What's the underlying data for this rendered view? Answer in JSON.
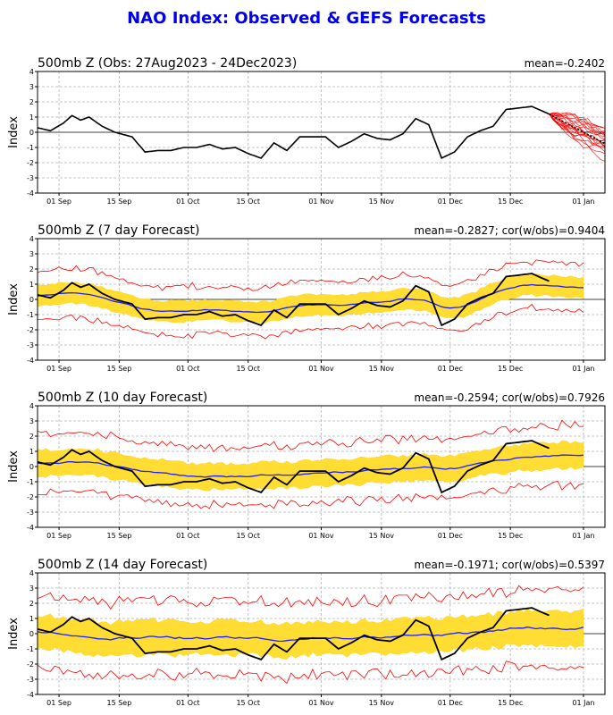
{
  "title": "NAO Index: Observed & GEFS Forecasts",
  "colors": {
    "title": "#0000ee",
    "observed": "#000000",
    "ensemble_mean": "#1c1cff",
    "spread": "#ffdd33",
    "spread_edge": "#ffd21a",
    "ensemble_members": "#ff0000",
    "grid": "#b3b3b3"
  },
  "chart_data": [
    {
      "type": "line",
      "title": "500mb Z (Obs: 27Aug2023 - 24Dec2023)",
      "stat": "mean=-0.2402",
      "ylabel": "Index",
      "xticks": [
        "01 Sep",
        "15 Sep",
        "01 Oct",
        "15 Oct",
        "01 Nov",
        "15 Nov",
        "01 Dec",
        "15 Dec",
        "01 Jan"
      ],
      "yticks": [
        "-4",
        "-3",
        "-2",
        "-1",
        "0",
        "1",
        "2",
        "3",
        "4"
      ],
      "ylim": [
        -4,
        4
      ],
      "grid": true,
      "x_start": "2023-08-27",
      "series": [
        {
          "name": "Observed",
          "x": [
            "2023-08-27",
            "2023-08-30",
            "2023-09-02",
            "2023-09-04",
            "2023-09-06",
            "2023-09-08",
            "2023-09-11",
            "2023-09-14",
            "2023-09-18",
            "2023-09-21",
            "2023-09-24",
            "2023-09-27",
            "2023-09-30",
            "2023-10-03",
            "2023-10-06",
            "2023-10-09",
            "2023-10-12",
            "2023-10-15",
            "2023-10-18",
            "2023-10-21",
            "2023-10-24",
            "2023-10-27",
            "2023-10-30",
            "2023-11-02",
            "2023-11-05",
            "2023-11-08",
            "2023-11-11",
            "2023-11-14",
            "2023-11-17",
            "2023-11-20",
            "2023-11-23",
            "2023-11-26",
            "2023-11-29",
            "2023-12-02",
            "2023-12-05",
            "2023-12-08",
            "2023-12-11",
            "2023-12-14",
            "2023-12-17",
            "2023-12-20",
            "2023-12-24"
          ],
          "values": [
            0.3,
            0.1,
            0.6,
            1.1,
            0.8,
            1.0,
            0.4,
            0.0,
            -0.3,
            -1.3,
            -1.2,
            -1.2,
            -1.0,
            -1.0,
            -0.8,
            -1.1,
            -1.0,
            -1.4,
            -1.7,
            -0.7,
            -1.2,
            -0.3,
            -0.3,
            -0.3,
            -1.0,
            -0.6,
            -0.1,
            -0.4,
            -0.5,
            -0.1,
            0.9,
            0.5,
            -1.7,
            -1.3,
            -0.3,
            0.1,
            0.4,
            1.5,
            1.6,
            1.7,
            1.2
          ]
        }
      ],
      "ensemble_members": 20
    },
    {
      "type": "line",
      "title": "500mb Z (7 day Forecast)",
      "stat": "mean=-0.2827; cor(w/obs)=0.9404",
      "ylabel": "Index",
      "xticks": [
        "01 Sep",
        "15 Sep",
        "01 Oct",
        "15 Oct",
        "01 Nov",
        "15 Nov",
        "01 Dec",
        "15 Dec",
        "01 Jan"
      ],
      "yticks": [
        "-4",
        "-3",
        "-2",
        "-1",
        "0",
        "1",
        "2",
        "3",
        "4"
      ],
      "ylim": [
        -4,
        4
      ],
      "grid": true,
      "lead_days": 7,
      "series_names": [
        "Observed",
        "GEFS ensemble mean",
        "Ensemble spread",
        "Ensemble min/max"
      ]
    },
    {
      "type": "line",
      "title": "500mb Z (10 day Forecast)",
      "stat": "mean=-0.2594; cor(w/obs)=0.7926",
      "ylabel": "Index",
      "xticks": [
        "01 Sep",
        "15 Sep",
        "01 Oct",
        "15 Oct",
        "01 Nov",
        "15 Nov",
        "01 Dec",
        "15 Dec",
        "01 Jan"
      ],
      "yticks": [
        "-4",
        "-3",
        "-2",
        "-1",
        "0",
        "1",
        "2",
        "3",
        "4"
      ],
      "ylim": [
        -4,
        4
      ],
      "grid": true,
      "lead_days": 10
    },
    {
      "type": "line",
      "title": "500mb Z (14 day Forecast)",
      "stat": "mean=-0.1971; cor(w/obs)=0.5397",
      "ylabel": "Index",
      "xticks": [
        "01 Sep",
        "15 Sep",
        "01 Oct",
        "15 Oct",
        "01 Nov",
        "15 Nov",
        "01 Dec",
        "15 Dec",
        "01 Jan"
      ],
      "yticks": [
        "-4",
        "-3",
        "-2",
        "-1",
        "0",
        "1",
        "2",
        "3",
        "4"
      ],
      "ylim": [
        -4,
        4
      ],
      "grid": true,
      "lead_days": 14
    }
  ]
}
